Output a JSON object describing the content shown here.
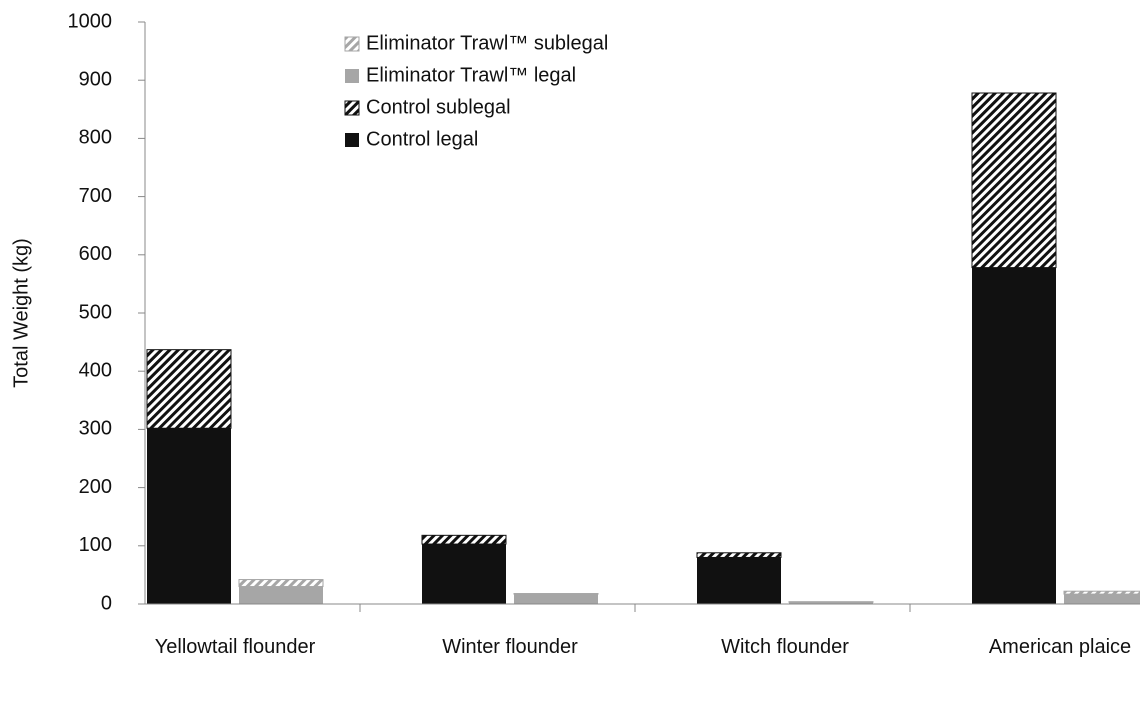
{
  "chart_data": {
    "type": "bar",
    "stacked": true,
    "ylabel": "Total Weight (kg)",
    "categories": [
      "Yellowtail flounder",
      "Winter flounder",
      "Witch flounder",
      "American plaice"
    ],
    "series": [
      {
        "name": "Control legal",
        "color": "#111111",
        "pattern": "solid",
        "values": [
          302,
          103,
          80,
          578
        ]
      },
      {
        "name": "Control sublegal",
        "color": "#111111",
        "pattern": "hatch",
        "values": [
          135,
          15,
          8,
          300
        ]
      },
      {
        "name": "Eliminator Trawl™ legal",
        "color": "#a6a6a6",
        "pattern": "solid",
        "values": [
          30,
          17,
          3,
          17
        ]
      },
      {
        "name": "Eliminator Trawl™ sublegal",
        "color": "#a6a6a6",
        "pattern": "hatch",
        "values": [
          12,
          1,
          1,
          5
        ]
      }
    ],
    "ylim": [
      0,
      1000
    ],
    "yticks": [
      0,
      100,
      200,
      300,
      400,
      500,
      600,
      700,
      800,
      900,
      1000
    ],
    "legend": "top"
  }
}
